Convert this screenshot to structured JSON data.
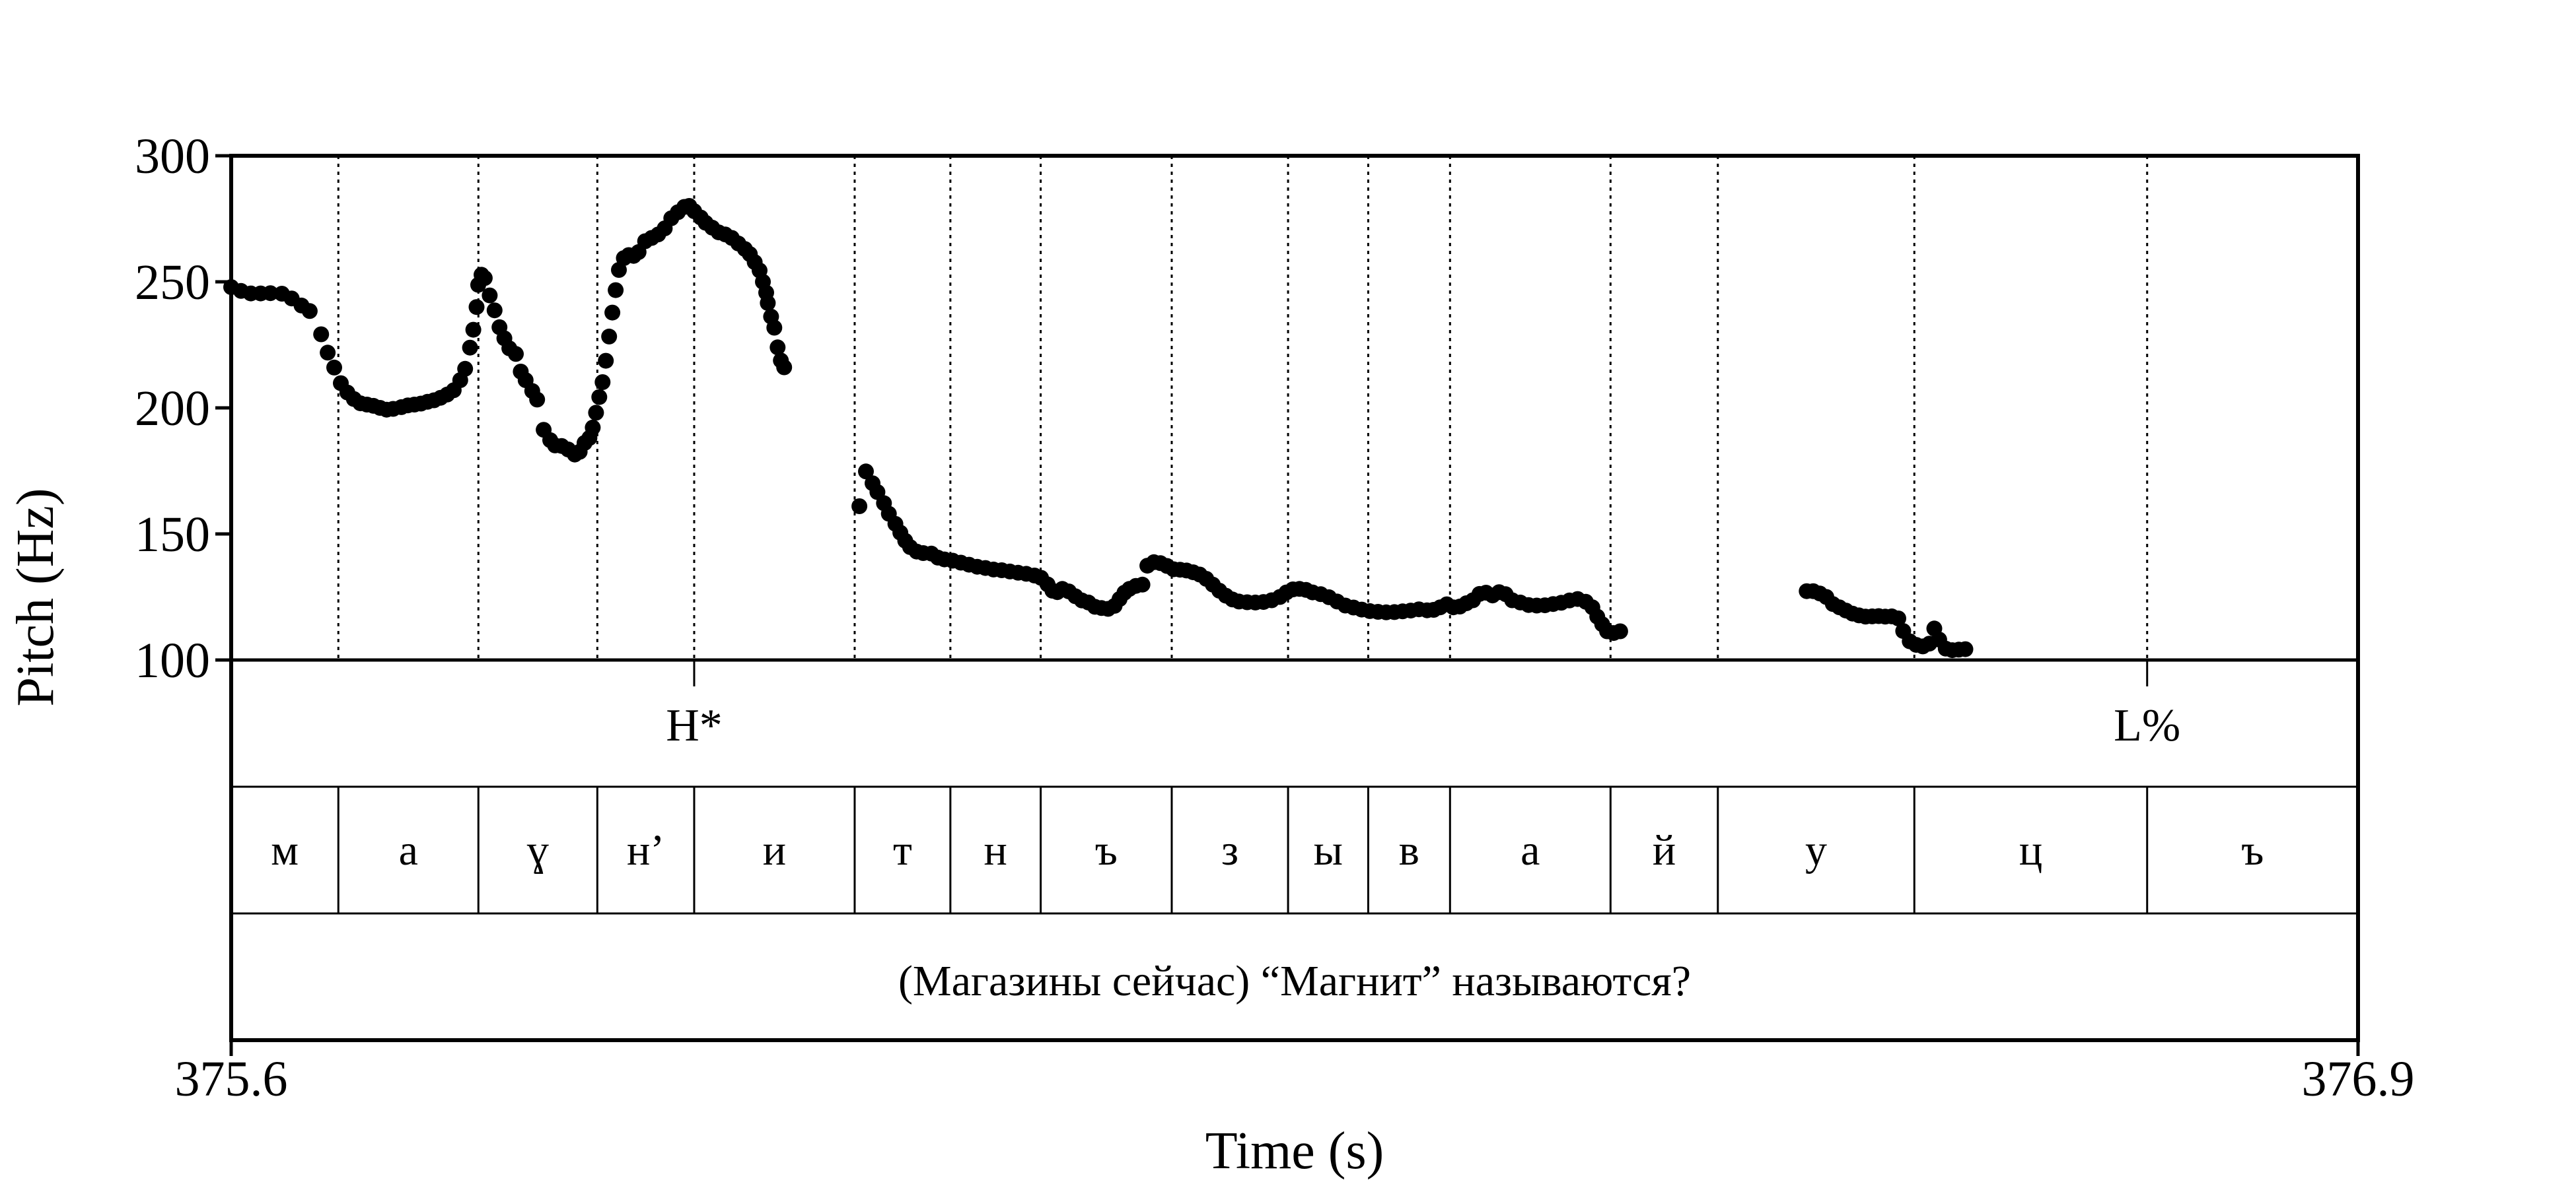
{
  "chart_data": {
    "type": "scatter",
    "xlabel": "Time (s)",
    "ylabel": "Pitch (Hz)",
    "xlim": [
      375.6,
      376.9
    ],
    "ylim": [
      100,
      300
    ],
    "x_ticks": [
      "375.6",
      "376.9"
    ],
    "y_ticks": [
      "300",
      "250",
      "200",
      "150",
      "100"
    ],
    "y_tick_values": [
      300,
      250,
      200,
      150,
      100
    ],
    "grid": false,
    "series": [
      {
        "color": "#000000",
        "points": [
          [
            375.6,
            247.9
          ],
          [
            375.606,
            246.4
          ],
          [
            375.612,
            245.4
          ],
          [
            375.618,
            245.4
          ],
          [
            375.624,
            245.5
          ],
          [
            375.631,
            245.3
          ],
          [
            375.637,
            243.4
          ],
          [
            375.643,
            240.6
          ],
          [
            375.648,
            238.4
          ],
          [
            375.655,
            229.2
          ],
          [
            375.659,
            221.9
          ],
          [
            375.663,
            216.0
          ],
          [
            375.667,
            209.8
          ],
          [
            375.671,
            206.1
          ],
          [
            375.675,
            203.5
          ],
          [
            375.679,
            201.8
          ],
          [
            375.683,
            201.3
          ],
          [
            375.687,
            200.8
          ],
          [
            375.691,
            200.0
          ],
          [
            375.695,
            199.3
          ],
          [
            375.699,
            199.6
          ],
          [
            375.704,
            200.3
          ],
          [
            375.708,
            201.0
          ],
          [
            375.712,
            201.3
          ],
          [
            375.716,
            201.7
          ],
          [
            375.72,
            202.4
          ],
          [
            375.724,
            203.0
          ],
          [
            375.728,
            204.0
          ],
          [
            375.732,
            205.3
          ],
          [
            375.736,
            207.0
          ],
          [
            375.74,
            211.0
          ],
          [
            375.743,
            215.5
          ],
          [
            375.746,
            223.9
          ],
          [
            375.748,
            231.0
          ],
          [
            375.75,
            240.0
          ],
          [
            375.751,
            248.8
          ],
          [
            375.753,
            252.8
          ],
          [
            375.755,
            251.5
          ],
          [
            375.758,
            244.6
          ],
          [
            375.761,
            238.7
          ],
          [
            375.764,
            232.0
          ],
          [
            375.767,
            227.6
          ],
          [
            375.77,
            223.6
          ],
          [
            375.774,
            221.4
          ],
          [
            375.777,
            214.4
          ],
          [
            375.78,
            211.0
          ],
          [
            375.784,
            206.7
          ],
          [
            375.787,
            203.3
          ],
          [
            375.791,
            191.3
          ],
          [
            375.795,
            187.2
          ],
          [
            375.798,
            185.1
          ],
          [
            375.802,
            184.9
          ],
          [
            375.806,
            183.5
          ],
          [
            375.81,
            181.5
          ],
          [
            375.813,
            182.6
          ],
          [
            375.816,
            186.1
          ],
          [
            375.819,
            188.1
          ],
          [
            375.821,
            192.2
          ],
          [
            375.823,
            198.1
          ],
          [
            375.825,
            204.3
          ],
          [
            375.827,
            210.2
          ],
          [
            375.829,
            218.7
          ],
          [
            375.831,
            228.3
          ],
          [
            375.833,
            237.8
          ],
          [
            375.835,
            246.7
          ],
          [
            375.837,
            254.7
          ],
          [
            375.84,
            259.4
          ],
          [
            375.843,
            260.6
          ],
          [
            375.846,
            260.3
          ],
          [
            375.849,
            261.8
          ],
          [
            375.853,
            266.1
          ],
          [
            375.857,
            267.4
          ],
          [
            375.861,
            268.8
          ],
          [
            375.865,
            271.2
          ],
          [
            375.869,
            275.2
          ],
          [
            375.873,
            277.6
          ],
          [
            375.877,
            279.7
          ],
          [
            375.88,
            280.1
          ],
          [
            375.883,
            278.0
          ],
          [
            375.887,
            275.5
          ],
          [
            375.89,
            273.4
          ],
          [
            375.894,
            271.5
          ],
          [
            375.898,
            269.6
          ],
          [
            375.902,
            268.8
          ],
          [
            375.906,
            267.4
          ],
          [
            375.91,
            265.2
          ],
          [
            375.914,
            263.0
          ],
          [
            375.917,
            261.0
          ],
          [
            375.92,
            257.8
          ],
          [
            375.923,
            254.5
          ],
          [
            375.925,
            250.0
          ],
          [
            375.927,
            245.7
          ],
          [
            375.928,
            241.6
          ],
          [
            375.93,
            236.2
          ],
          [
            375.932,
            231.8
          ],
          [
            375.934,
            224.0
          ],
          [
            375.936,
            218.8
          ],
          [
            375.938,
            216.1
          ],
          [
            375.984,
            161.0
          ],
          [
            375.988,
            174.8
          ],
          [
            375.992,
            170.1
          ],
          [
            375.995,
            166.6
          ],
          [
            375.999,
            162.2
          ],
          [
            376.002,
            158.0
          ],
          [
            376.006,
            154.0
          ],
          [
            376.009,
            150.5
          ],
          [
            376.012,
            147.3
          ],
          [
            376.015,
            144.8
          ],
          [
            376.019,
            143.0
          ],
          [
            376.023,
            142.4
          ],
          [
            376.028,
            142.2
          ],
          [
            376.032,
            140.6
          ],
          [
            376.036,
            139.9
          ],
          [
            376.041,
            139.4
          ],
          [
            376.046,
            138.6
          ],
          [
            376.051,
            137.8
          ],
          [
            376.056,
            137.0
          ],
          [
            376.061,
            136.5
          ],
          [
            376.066,
            135.9
          ],
          [
            376.071,
            135.6
          ],
          [
            376.076,
            135.1
          ],
          [
            376.081,
            134.6
          ],
          [
            376.086,
            134.2
          ],
          [
            376.091,
            133.5
          ],
          [
            376.095,
            132.6
          ],
          [
            376.099,
            130.0
          ],
          [
            376.102,
            127.5
          ],
          [
            376.105,
            126.9
          ],
          [
            376.108,
            128.2
          ],
          [
            376.112,
            127.2
          ],
          [
            376.116,
            125.3
          ],
          [
            376.12,
            123.6
          ],
          [
            376.124,
            122.8
          ],
          [
            376.128,
            121.1
          ],
          [
            376.132,
            120.6
          ],
          [
            376.136,
            120.3
          ],
          [
            376.14,
            121.5
          ],
          [
            376.143,
            124.2
          ],
          [
            376.146,
            126.7
          ],
          [
            376.149,
            128.2
          ],
          [
            376.153,
            129.4
          ],
          [
            376.157,
            129.9
          ],
          [
            376.16,
            137.4
          ],
          [
            376.164,
            138.8
          ],
          [
            376.168,
            138.4
          ],
          [
            376.172,
            137.3
          ],
          [
            376.176,
            136.0
          ],
          [
            376.18,
            135.8
          ],
          [
            376.184,
            135.5
          ],
          [
            376.188,
            134.8
          ],
          [
            376.192,
            133.9
          ],
          [
            376.196,
            132.2
          ],
          [
            376.2,
            129.9
          ],
          [
            376.204,
            127.5
          ],
          [
            376.208,
            125.5
          ],
          [
            376.212,
            124.0
          ],
          [
            376.216,
            123.2
          ],
          [
            376.221,
            122.9
          ],
          [
            376.226,
            122.8
          ],
          [
            376.231,
            123.0
          ],
          [
            376.236,
            123.7
          ],
          [
            376.241,
            125.0
          ],
          [
            376.245,
            126.8
          ],
          [
            376.249,
            128.0
          ],
          [
            376.253,
            128.2
          ],
          [
            376.257,
            127.8
          ],
          [
            376.261,
            126.8
          ],
          [
            376.266,
            126.1
          ],
          [
            376.271,
            124.9
          ],
          [
            376.276,
            123.2
          ],
          [
            376.281,
            121.6
          ],
          [
            376.286,
            120.8
          ],
          [
            376.291,
            120.0
          ],
          [
            376.296,
            119.4
          ],
          [
            376.301,
            119.1
          ],
          [
            376.306,
            118.9
          ],
          [
            376.311,
            119.0
          ],
          [
            376.316,
            119.3
          ],
          [
            376.321,
            119.6
          ],
          [
            376.326,
            120.1
          ],
          [
            376.331,
            119.7
          ],
          [
            376.335,
            119.9
          ],
          [
            376.339,
            120.9
          ],
          [
            376.343,
            122.1
          ],
          [
            376.347,
            120.9
          ],
          [
            376.351,
            121.2
          ],
          [
            376.355,
            122.5
          ],
          [
            376.359,
            123.7
          ],
          [
            376.363,
            126.2
          ],
          [
            376.367,
            126.7
          ],
          [
            376.371,
            125.6
          ],
          [
            376.375,
            126.9
          ],
          [
            376.379,
            126.1
          ],
          [
            376.383,
            123.7
          ],
          [
            376.388,
            122.8
          ],
          [
            376.393,
            121.8
          ],
          [
            376.398,
            121.6
          ],
          [
            376.403,
            121.7
          ],
          [
            376.408,
            122.2
          ],
          [
            376.413,
            122.7
          ],
          [
            376.418,
            123.6
          ],
          [
            376.423,
            124.2
          ],
          [
            376.428,
            123.1
          ],
          [
            376.432,
            120.9
          ],
          [
            376.435,
            117.2
          ],
          [
            376.438,
            114.2
          ],
          [
            376.441,
            111.4
          ],
          [
            376.445,
            110.7
          ],
          [
            376.449,
            111.4
          ],
          [
            376.563,
            127.3
          ],
          [
            376.567,
            127.3
          ],
          [
            376.571,
            126.4
          ],
          [
            376.575,
            125.0
          ],
          [
            376.579,
            122.2
          ],
          [
            376.583,
            120.9
          ],
          [
            376.587,
            119.6
          ],
          [
            376.591,
            118.4
          ],
          [
            376.595,
            117.7
          ],
          [
            376.599,
            117.2
          ],
          [
            376.603,
            117.3
          ],
          [
            376.607,
            117.4
          ],
          [
            376.611,
            117.2
          ],
          [
            376.615,
            117.3
          ],
          [
            376.619,
            116.5
          ],
          [
            376.622,
            111.5
          ],
          [
            376.626,
            107.4
          ],
          [
            376.63,
            106.0
          ],
          [
            376.634,
            105.4
          ],
          [
            376.638,
            106.5
          ],
          [
            376.641,
            112.5
          ],
          [
            376.644,
            108.1
          ],
          [
            376.648,
            104.5
          ],
          [
            376.652,
            103.9
          ],
          [
            376.656,
            104.1
          ],
          [
            376.66,
            104.3
          ]
        ]
      }
    ],
    "tone_tier": [
      {
        "label": "H*",
        "time": 375.883
      },
      {
        "label": "L%",
        "time": 376.7711
      }
    ],
    "segment_tier": {
      "boundaries": [
        375.6655,
        375.7511,
        375.8238,
        375.883,
        375.9811,
        376.0396,
        376.0948,
        376.1749,
        376.246,
        376.295,
        376.345,
        376.4431,
        376.5087,
        376.6288,
        376.7711
      ],
      "labels": [
        "м",
        "а",
        "ɣ",
        "н’",
        "и",
        "т",
        "н",
        "ъ",
        "з",
        "ы",
        "в",
        "а",
        "й",
        "у",
        "ц",
        "ъ"
      ]
    },
    "sentence_tier": {
      "text": "(Магазины сейчас) “Магнит” называются?"
    }
  }
}
